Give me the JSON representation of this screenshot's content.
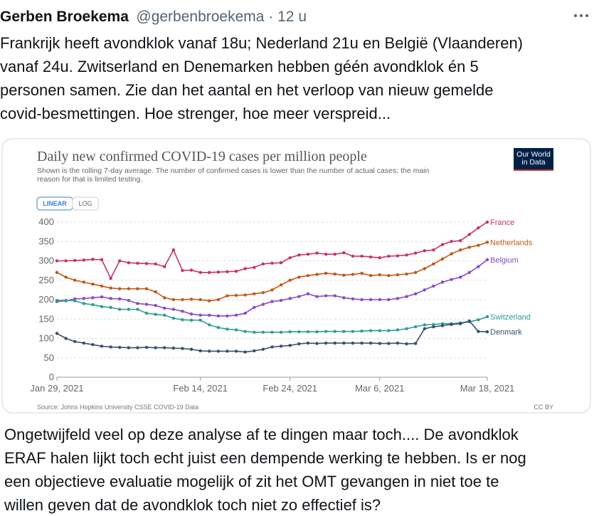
{
  "tweet": {
    "name": "Gerben Broekema",
    "meta": "@gerbenbroekema · 12 u",
    "text_lines": [
      "Frankrijk heeft avondklok vanaf 18u; Nederland 21u en België (Vlaanderen)",
      "vanaf 24u. Zwitserland en Denemarken hebben géén avondklok én 5",
      "personen samen. Zie dan het aantal en het verloop van nieuw gemelde",
      "covid-besmettingen. Hoe strenger, hoe meer verspreid..."
    ],
    "reply_lines": [
      "Ongetwijfeld veel op deze analyse af te dingen maar toch.... De avondklok",
      "ERAF halen lijkt toch echt juist een dempende werking te hebben. Is er nog",
      "een objectieve evaluatie mogelijk of zit het OMT gevangen in niet toe te",
      "willen geven dat de avondklok toch niet zo effectief is?"
    ]
  },
  "chart_data": {
    "type": "line",
    "title": "Daily new confirmed COVID-19 cases per million people",
    "subtitle_lines": [
      "Shown is the rolling 7-day average. The number of confirmed cases is lower than the number of actual cases; the main",
      "reason for that is limited testing."
    ],
    "buttons": [
      "LINEAR",
      "LOG"
    ],
    "logo_lines": [
      "Our World",
      "in Data"
    ],
    "source": "Source: Johns Hopkins University CSSE COVID-19 Data",
    "license": "CC BY",
    "x": [
      "2021-01-29",
      "2021-01-30",
      "2021-01-31",
      "2021-02-01",
      "2021-02-02",
      "2021-02-03",
      "2021-02-04",
      "2021-02-05",
      "2021-02-06",
      "2021-02-07",
      "2021-02-08",
      "2021-02-09",
      "2021-02-10",
      "2021-02-11",
      "2021-02-12",
      "2021-02-13",
      "2021-02-14",
      "2021-02-15",
      "2021-02-16",
      "2021-02-17",
      "2021-02-18",
      "2021-02-19",
      "2021-02-20",
      "2021-02-21",
      "2021-02-22",
      "2021-02-23",
      "2021-02-24",
      "2021-02-25",
      "2021-02-26",
      "2021-02-27",
      "2021-02-28",
      "2021-03-01",
      "2021-03-02",
      "2021-03-03",
      "2021-03-04",
      "2021-03-05",
      "2021-03-06",
      "2021-03-07",
      "2021-03-08",
      "2021-03-09",
      "2021-03-10",
      "2021-03-11",
      "2021-03-12",
      "2021-03-13",
      "2021-03-14",
      "2021-03-15",
      "2021-03-16",
      "2021-03-17",
      "2021-03-18"
    ],
    "xlim": [
      "2021-01-29",
      "2021-03-18"
    ],
    "xticks": [
      {
        "value": "2021-01-29",
        "label": "Jan 29, 2021"
      },
      {
        "value": "2021-02-14",
        "label": "Feb 14, 2021"
      },
      {
        "value": "2021-02-24",
        "label": "Feb 24, 2021"
      },
      {
        "value": "2021-03-06",
        "label": "Mar 6, 2021"
      },
      {
        "value": "2021-03-18",
        "label": "Mar 18, 2021"
      }
    ],
    "ylim": [
      0,
      400
    ],
    "yticks": [
      0,
      50,
      100,
      150,
      200,
      250,
      300,
      350,
      400
    ],
    "grid": true,
    "series": [
      {
        "name": "France",
        "color": "#c8306f",
        "values": [
          300,
          300,
          301,
          302,
          304,
          303,
          255,
          300,
          295,
          294,
          293,
          292,
          285,
          328,
          275,
          276,
          270,
          270,
          271,
          272,
          273,
          280,
          283,
          292,
          294,
          295,
          308,
          315,
          317,
          320,
          317,
          317,
          321,
          312,
          312,
          310,
          308,
          312,
          313,
          315,
          320,
          326,
          328,
          342,
          350,
          352,
          368,
          385,
          400
        ]
      },
      {
        "name": "Netherlands",
        "color": "#c05917",
        "values": [
          270,
          258,
          250,
          245,
          240,
          235,
          230,
          228,
          228,
          228,
          228,
          220,
          205,
          200,
          200,
          201,
          200,
          197,
          200,
          210,
          211,
          212,
          215,
          218,
          225,
          238,
          250,
          258,
          262,
          265,
          268,
          266,
          263,
          265,
          268,
          262,
          264,
          262,
          264,
          266,
          270,
          280,
          292,
          305,
          318,
          328,
          335,
          340,
          348
        ]
      },
      {
        "name": "Belgium",
        "color": "#8a4ac7",
        "values": [
          195,
          197,
          202,
          203,
          205,
          207,
          203,
          202,
          198,
          190,
          188,
          185,
          178,
          175,
          170,
          163,
          160,
          160,
          158,
          158,
          160,
          165,
          180,
          188,
          195,
          198,
          203,
          208,
          215,
          208,
          210,
          210,
          205,
          202,
          200,
          200,
          200,
          200,
          203,
          208,
          215,
          225,
          235,
          245,
          252,
          258,
          270,
          285,
          303
        ]
      },
      {
        "name": "Switzerland",
        "color": "#2e9e93",
        "values": [
          198,
          198,
          197,
          190,
          187,
          182,
          180,
          175,
          175,
          175,
          165,
          162,
          160,
          152,
          148,
          147,
          147,
          135,
          128,
          124,
          122,
          118,
          116,
          116,
          116,
          116,
          117,
          117,
          117,
          117,
          118,
          118,
          118,
          118,
          119,
          120,
          120,
          120,
          122,
          125,
          130,
          135,
          136,
          138,
          138,
          140,
          143,
          148,
          156
        ]
      },
      {
        "name": "Denmark",
        "color": "#3c4e6e",
        "values": [
          113,
          100,
          92,
          88,
          84,
          80,
          78,
          77,
          76,
          76,
          77,
          76,
          76,
          75,
          74,
          72,
          68,
          67,
          67,
          67,
          67,
          65,
          68,
          72,
          78,
          80,
          82,
          86,
          88,
          87,
          88,
          88,
          88,
          88,
          88,
          88,
          87,
          87,
          88,
          86,
          87,
          125,
          130,
          133,
          136,
          138,
          145,
          118,
          117
        ]
      }
    ]
  }
}
